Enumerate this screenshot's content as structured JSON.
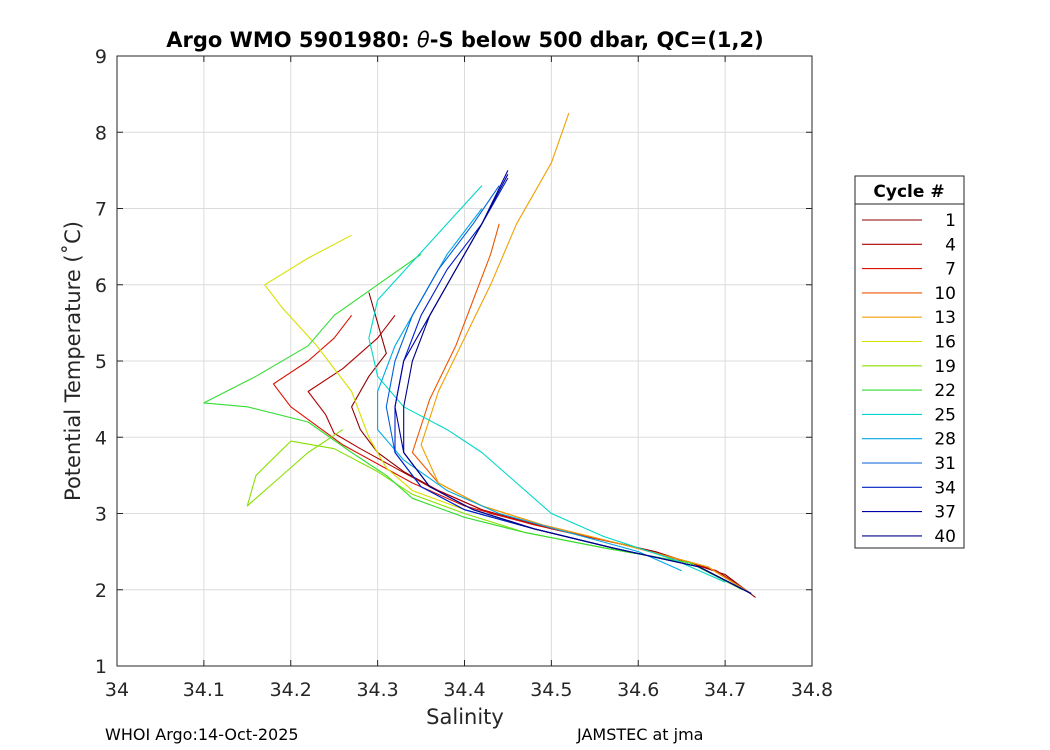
{
  "chart_data": {
    "type": "line",
    "title_prefix": "Argo WMO 5901980: ",
    "title_theta": "θ",
    "title_suffix": "-S below 500 dbar,  QC=(1,2)",
    "xlabel": "Salinity",
    "ylabel": "Potential Temperature (˚C)",
    "xlim": [
      34.0,
      34.8
    ],
    "ylim": [
      1,
      9
    ],
    "xticks": [
      "34",
      "34.1",
      "34.2",
      "34.3",
      "34.4",
      "34.5",
      "34.6",
      "34.7",
      "34.8"
    ],
    "yticks": [
      "1",
      "2",
      "3",
      "4",
      "5",
      "6",
      "7",
      "8",
      "9"
    ],
    "grid": true,
    "legend_title": "Cycle #",
    "legend_location": "outside-right",
    "series": [
      {
        "name": "1",
        "color": "#8b0000",
        "s": [
          34.735,
          34.7,
          34.62,
          34.52,
          34.43,
          34.37,
          34.33,
          34.3,
          34.28,
          34.27,
          34.29,
          34.31,
          34.3,
          34.29
        ],
        "t": [
          1.9,
          2.2,
          2.5,
          2.75,
          3.0,
          3.3,
          3.55,
          3.8,
          4.1,
          4.4,
          4.8,
          5.1,
          5.5,
          5.9
        ]
      },
      {
        "name": "4",
        "color": "#b00000",
        "s": [
          34.73,
          34.69,
          34.6,
          34.5,
          34.42,
          34.36,
          34.32,
          34.28,
          34.25,
          34.24,
          34.22,
          34.26,
          34.3,
          34.32
        ],
        "t": [
          1.95,
          2.25,
          2.55,
          2.8,
          3.05,
          3.35,
          3.6,
          3.85,
          4.05,
          4.3,
          4.6,
          4.9,
          5.3,
          5.6
        ]
      },
      {
        "name": "7",
        "color": "#dd1100",
        "s": [
          34.73,
          34.68,
          34.58,
          34.48,
          34.4,
          34.34,
          34.3,
          34.26,
          34.23,
          34.2,
          34.18,
          34.22,
          34.25,
          34.27
        ],
        "t": [
          1.95,
          2.3,
          2.6,
          2.85,
          3.1,
          3.4,
          3.65,
          3.9,
          4.15,
          4.4,
          4.7,
          5.0,
          5.3,
          5.6
        ]
      },
      {
        "name": "10",
        "color": "#ee5500",
        "s": [
          34.73,
          34.68,
          34.58,
          34.49,
          34.42,
          34.37,
          34.34,
          34.36,
          34.39,
          34.41,
          34.43,
          34.44
        ],
        "t": [
          1.95,
          2.3,
          2.6,
          2.85,
          3.1,
          3.4,
          3.8,
          4.5,
          5.2,
          5.8,
          6.4,
          6.8
        ]
      },
      {
        "name": "13",
        "color": "#f0a000",
        "s": [
          34.73,
          34.68,
          34.58,
          34.49,
          34.42,
          34.37,
          34.35,
          34.37,
          34.4,
          34.43,
          34.46,
          34.5,
          34.52
        ],
        "t": [
          1.95,
          2.3,
          2.6,
          2.85,
          3.1,
          3.4,
          3.9,
          4.6,
          5.3,
          6.0,
          6.8,
          7.6,
          8.25
        ]
      },
      {
        "name": "16",
        "color": "#d8e000",
        "s": [
          34.73,
          34.67,
          34.57,
          34.48,
          34.4,
          34.34,
          34.31,
          34.29,
          34.27,
          34.23,
          34.19,
          34.17,
          34.22,
          34.27
        ],
        "t": [
          1.95,
          2.3,
          2.55,
          2.8,
          3.05,
          3.3,
          3.6,
          4.0,
          4.6,
          5.2,
          5.7,
          6.0,
          6.35,
          6.65
        ]
      },
      {
        "name": "19",
        "color": "#88e000",
        "s": [
          34.72,
          34.66,
          34.56,
          34.47,
          34.4,
          34.34,
          34.3,
          34.25,
          34.2,
          34.16,
          34.15,
          34.18,
          34.22,
          34.26
        ],
        "t": [
          2.0,
          2.35,
          2.55,
          2.75,
          3.0,
          3.25,
          3.55,
          3.85,
          3.95,
          3.5,
          3.1,
          3.4,
          3.8,
          4.1
        ]
      },
      {
        "name": "22",
        "color": "#33dd33",
        "s": [
          34.72,
          34.66,
          34.56,
          34.47,
          34.4,
          34.34,
          34.31,
          34.27,
          34.22,
          34.15,
          34.1,
          34.16,
          34.22,
          34.25,
          34.3,
          34.35
        ],
        "t": [
          2.0,
          2.35,
          2.55,
          2.75,
          2.95,
          3.2,
          3.5,
          3.8,
          4.2,
          4.4,
          4.45,
          4.8,
          5.2,
          5.6,
          6.0,
          6.4
        ]
      },
      {
        "name": "25",
        "color": "#00d8c8",
        "s": [
          34.7,
          34.64,
          34.56,
          34.5,
          34.46,
          34.42,
          34.38,
          34.33,
          34.3,
          34.29,
          34.3,
          34.34,
          34.38,
          34.42
        ],
        "t": [
          2.1,
          2.4,
          2.7,
          3.0,
          3.4,
          3.8,
          4.1,
          4.4,
          4.8,
          5.3,
          5.8,
          6.3,
          6.8,
          7.3
        ]
      },
      {
        "name": "28",
        "color": "#00a8e8",
        "s": [
          34.65,
          34.6,
          34.52,
          34.44,
          34.38,
          34.33,
          34.3,
          34.3,
          34.32,
          34.35,
          34.38,
          34.42
        ],
        "t": [
          2.25,
          2.5,
          2.75,
          3.0,
          3.3,
          3.7,
          4.1,
          4.6,
          5.2,
          5.8,
          6.4,
          7.0
        ]
      },
      {
        "name": "31",
        "color": "#0060d8",
        "s": [
          34.73,
          34.67,
          34.57,
          34.48,
          34.4,
          34.35,
          34.32,
          34.31,
          34.32,
          34.34,
          34.37,
          34.41,
          34.44
        ],
        "t": [
          1.95,
          2.3,
          2.55,
          2.8,
          3.05,
          3.35,
          3.8,
          4.4,
          5.0,
          5.6,
          6.2,
          6.8,
          7.3
        ]
      },
      {
        "name": "34",
        "color": "#0020c8",
        "s": [
          34.73,
          34.67,
          34.57,
          34.48,
          34.4,
          34.35,
          34.32,
          34.32,
          34.33,
          34.35,
          34.38,
          34.42,
          34.45
        ],
        "t": [
          1.95,
          2.3,
          2.55,
          2.8,
          3.05,
          3.35,
          3.8,
          4.4,
          5.0,
          5.6,
          6.2,
          6.8,
          7.4
        ]
      },
      {
        "name": "37",
        "color": "#0000a8",
        "s": [
          34.73,
          34.67,
          34.57,
          34.48,
          34.41,
          34.36,
          34.33,
          34.32,
          34.33,
          34.36,
          34.39,
          34.42,
          34.45
        ],
        "t": [
          1.95,
          2.3,
          2.55,
          2.8,
          3.05,
          3.35,
          3.8,
          4.4,
          5.0,
          5.6,
          6.2,
          6.8,
          7.5
        ]
      },
      {
        "name": "40",
        "color": "#000088",
        "s": [
          34.73,
          34.67,
          34.57,
          34.48,
          34.41,
          34.36,
          34.33,
          34.33,
          34.34,
          34.36,
          34.39,
          34.42,
          34.45
        ],
        "t": [
          1.95,
          2.3,
          2.55,
          2.8,
          3.05,
          3.35,
          3.8,
          4.4,
          5.0,
          5.6,
          6.2,
          6.8,
          7.45
        ]
      }
    ]
  },
  "footer": {
    "left": "WHOI Argo:14-Oct-2025",
    "right": "JAMSTEC at jma"
  }
}
